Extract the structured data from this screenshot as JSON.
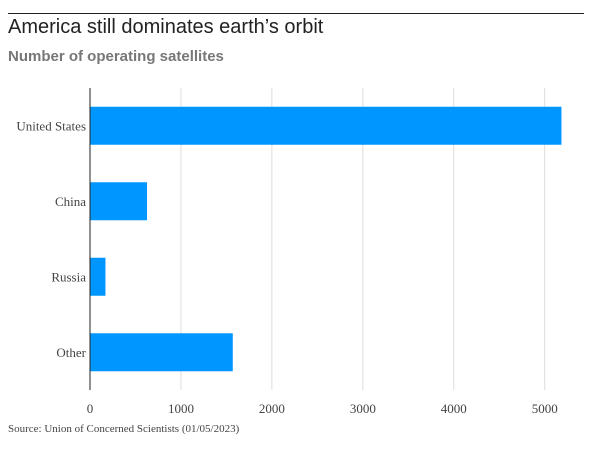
{
  "title": "America still dominates earth’s orbit",
  "subtitle": "Number of operating satellites",
  "source": "Source: Union of Concerned Scientists (01/05/2023)",
  "colors": {
    "bar": "#0096FF",
    "grid": "#dddddd",
    "axis": "#222222"
  },
  "chart_data": {
    "type": "bar",
    "orientation": "horizontal",
    "categories": [
      "United States",
      "China",
      "Russia",
      "Other"
    ],
    "values": [
      5184,
      627,
      170,
      1570
    ],
    "xlim": [
      0,
      5300
    ],
    "xticks": [
      0,
      1000,
      2000,
      3000,
      4000,
      5000
    ],
    "grid": "vertical",
    "xlabel": "",
    "ylabel": ""
  }
}
